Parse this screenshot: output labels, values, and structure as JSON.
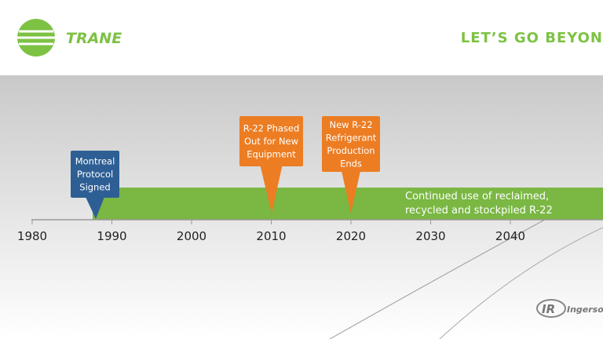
{
  "header": {
    "logo": "TRANE",
    "tagline": "LET’S GO BEYON"
  },
  "timeline": {
    "ticks": [
      "1980",
      "1990",
      "2000",
      "2010",
      "2020",
      "2030",
      "2040"
    ],
    "bar_label": [
      "Continued use of reclaimed,",
      "recycled and stockpiled R-22"
    ],
    "events": [
      {
        "lines": [
          "Montreal",
          "Protocol",
          "Signed"
        ]
      },
      {
        "lines": [
          "R-22 Phased",
          "Out for New",
          "Equipment"
        ]
      },
      {
        "lines": [
          "New R-22",
          "Refrigerant",
          "Production",
          "Ends"
        ]
      }
    ]
  },
  "footer": {
    "logo": "Ingersoll R"
  }
}
